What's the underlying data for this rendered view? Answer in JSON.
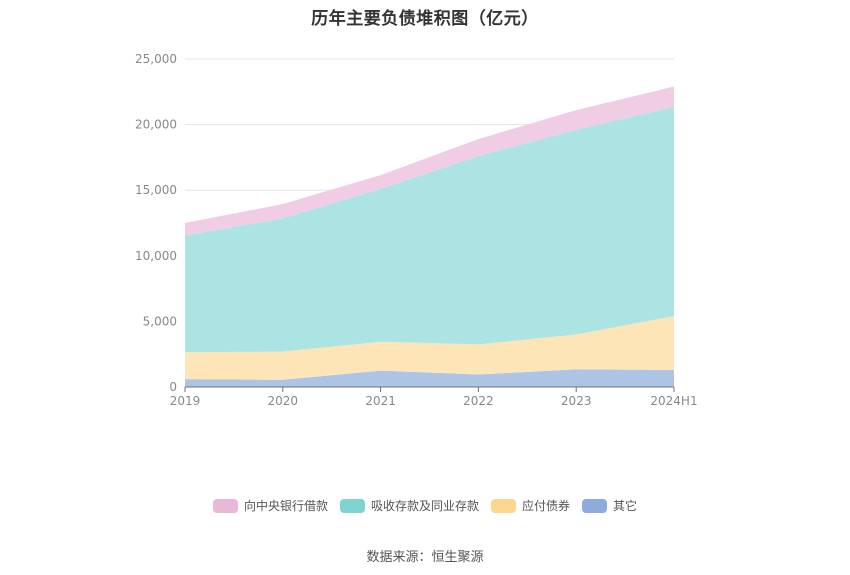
{
  "title": "历年主要负债堆积图（亿元）",
  "source": "数据来源：恒生聚源",
  "legend": [
    {
      "label": "向中央银行借款",
      "color": "#e8b8d8"
    },
    {
      "label": "吸收存款及同业存款",
      "color": "#7ed3d1"
    },
    {
      "label": "应付债券",
      "color": "#fdd690"
    },
    {
      "label": "其它",
      "color": "#8faadc"
    }
  ],
  "chart_data": {
    "type": "area",
    "stacked": true,
    "title": "历年主要负债堆积图（亿元）",
    "xlabel": "",
    "ylabel": "",
    "categories": [
      "2019",
      "2020",
      "2021",
      "2022",
      "2023",
      "2024H1"
    ],
    "ylim": [
      0,
      25000
    ],
    "yticks": [
      "0",
      "5,000",
      "10,000",
      "15,000",
      "20,000",
      "25,000"
    ],
    "grid": true,
    "legend_position": "bottom",
    "series": [
      {
        "name": "其它",
        "color": "#aec4e5",
        "values": [
          600,
          550,
          1250,
          950,
          1350,
          1300
        ]
      },
      {
        "name": "应付债券",
        "color": "#fde5b8",
        "values": [
          2050,
          2150,
          2200,
          2300,
          2650,
          4100
        ]
      },
      {
        "name": "吸收存款及同业存款",
        "color": "#ace4e3",
        "values": [
          8900,
          10150,
          11650,
          14350,
          15600,
          15950
        ]
      },
      {
        "name": "向中央银行借款",
        "color": "#f0cde4",
        "values": [
          950,
          1100,
          1050,
          1300,
          1500,
          1550
        ]
      }
    ]
  }
}
